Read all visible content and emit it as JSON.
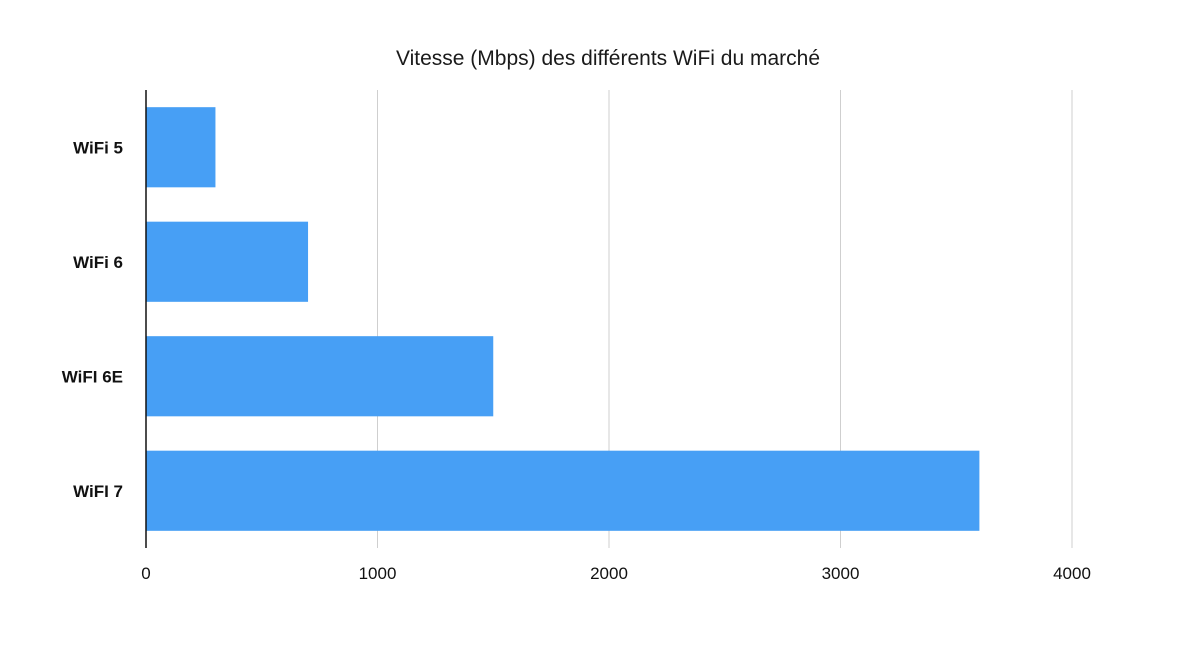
{
  "chart_data": {
    "type": "bar",
    "orientation": "horizontal",
    "title": "Vitesse (Mbps) des différents WiFi du marché",
    "categories": [
      "WiFi 5",
      "WiFi 6",
      "WiFI 6E",
      "WiFI 7"
    ],
    "values": [
      300,
      700,
      1500,
      3600
    ],
    "xlabel": "",
    "ylabel": "",
    "xlim": [
      0,
      4000
    ],
    "xticks": [
      0,
      1000,
      2000,
      3000,
      4000
    ],
    "grid": true,
    "legend": "none",
    "bar_color": "#479ff5"
  }
}
